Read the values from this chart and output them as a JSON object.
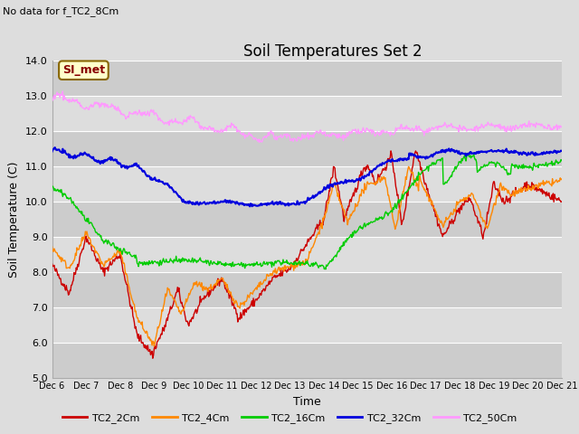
{
  "title": "Soil Temperatures Set 2",
  "subtitle": "No data for f_TC2_8Cm",
  "xlabel": "Time",
  "ylabel": "Soil Temperature (C)",
  "ylim": [
    5.0,
    14.0
  ],
  "yticks": [
    5.0,
    6.0,
    7.0,
    8.0,
    9.0,
    10.0,
    11.0,
    12.0,
    13.0,
    14.0
  ],
  "xtick_labels": [
    "Dec 6",
    "Dec 7",
    "Dec 8",
    "Dec 9",
    "Dec 10",
    "Dec 11",
    "Dec 12",
    "Dec 13",
    "Dec 14",
    "Dec 15",
    "Dec 16",
    "Dec 17",
    "Dec 18",
    "Dec 19",
    "Dec 20",
    "Dec 21"
  ],
  "colors": {
    "TC2_2Cm": "#cc0000",
    "TC2_4Cm": "#ff8800",
    "TC2_16Cm": "#00cc00",
    "TC2_32Cm": "#0000dd",
    "TC2_50Cm": "#ff99ff"
  },
  "bg_color": "#dddddd",
  "band_colors": [
    "#cccccc",
    "#dddddd"
  ],
  "grid_color": "#ffffff",
  "annotation_text": "SI_met",
  "annotation_bg": "#ffffcc",
  "annotation_border": "#886600",
  "title_fontsize": 12,
  "axis_fontsize": 9,
  "tick_fontsize": 8,
  "xtick_fontsize": 7
}
